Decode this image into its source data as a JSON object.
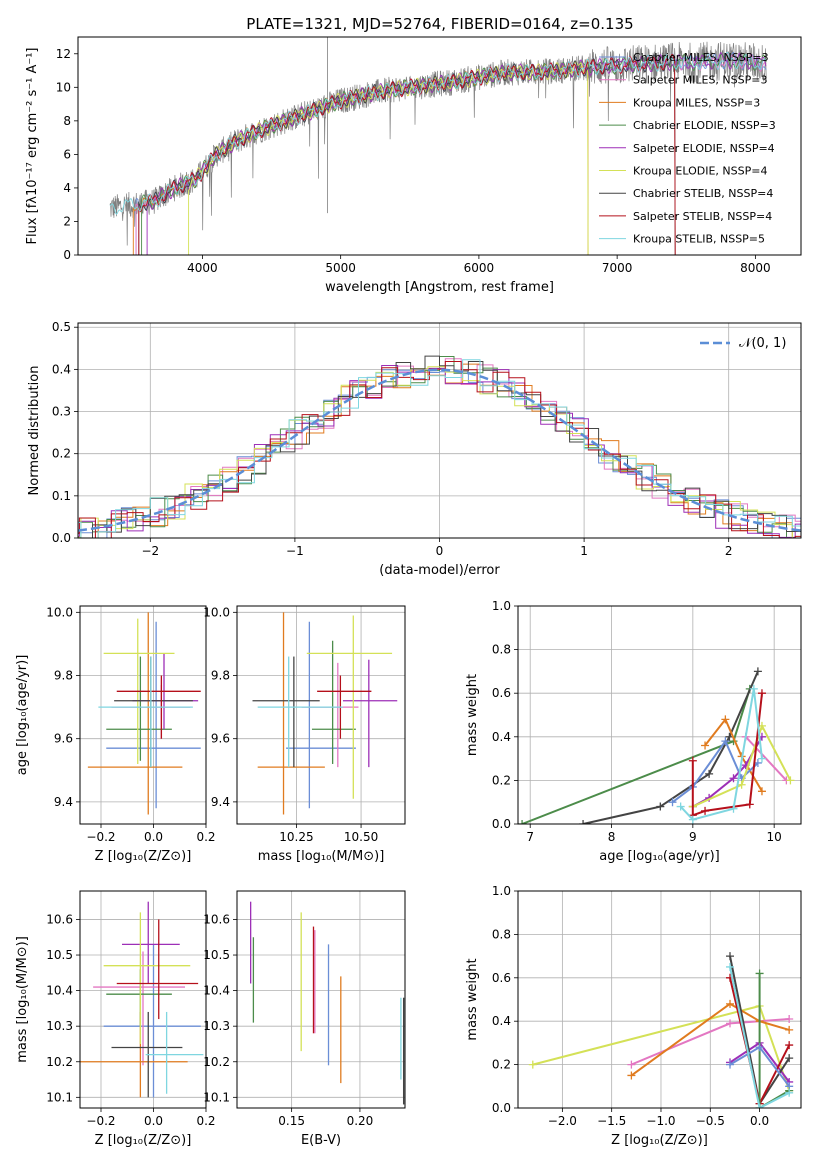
{
  "title": "PLATE=1321, MJD=52764, FIBERID=0164, z=0.135",
  "chart_data": [
    {
      "type": "line",
      "name": "spectrum",
      "xlabel": "wavelength [Angstrom, rest frame]",
      "ylabel": "Flux [fλ10⁻¹⁷ erg cm⁻² s⁻¹ A⁻¹]",
      "xlim": [
        3100,
        8330
      ],
      "ylim": [
        0,
        13
      ],
      "xticks": [
        "4000",
        "5000",
        "6000",
        "7000",
        "8000"
      ],
      "yticks": [
        "0",
        "2",
        "4",
        "6",
        "8",
        "10",
        "12"
      ],
      "legend": "upper-right",
      "data_trend": {
        "x": [
          3330,
          3500,
          3650,
          3800,
          3950,
          4100,
          4250,
          4400,
          4600,
          4800,
          5000,
          5200,
          5400,
          5600,
          5800,
          6000,
          6200,
          6400,
          6600,
          6800,
          7000,
          7200,
          7400,
          7600,
          7800,
          8000,
          8080
        ],
        "y": [
          2.8,
          3.0,
          3.2,
          4.0,
          4.5,
          6.0,
          6.8,
          7.4,
          8.0,
          8.6,
          9.2,
          9.6,
          9.9,
          10.1,
          10.3,
          10.6,
          10.9,
          10.9,
          11.0,
          11.2,
          11.3,
          11.4,
          11.5,
          11.5,
          11.6,
          11.5,
          11.4
        ]
      },
      "series": [
        {
          "name": "Chabrier MILES, N_SSP=3",
          "color": "#6b8ed6"
        },
        {
          "name": "Salpeter MILES, N_SSP=3",
          "color": "#e377c2"
        },
        {
          "name": "Kroupa MILES, N_SSP=3",
          "color": "#e07b1f"
        },
        {
          "name": "Chabrier ELODIE, N_SSP=3",
          "color": "#4c8c4a"
        },
        {
          "name": "Salpeter ELODIE, N_SSP=4",
          "color": "#9d2fb7"
        },
        {
          "name": "Kroupa ELODIE, N_SSP=4",
          "color": "#d4e157"
        },
        {
          "name": "Chabrier STELIB, N_SSP=4",
          "color": "#444444"
        },
        {
          "name": "Salpeter STELIB, N_SSP=4",
          "color": "#b5101b"
        },
        {
          "name": "Kroupa STELIB, N_SSP=5",
          "color": "#7fd6e0"
        }
      ]
    },
    {
      "type": "histogram",
      "name": "residuals",
      "xlabel": "(data-model)/error",
      "ylabel": "Normed distribution",
      "xlim": [
        -2.5,
        2.5
      ],
      "ylim": [
        0,
        0.51
      ],
      "xticks": [
        "−2",
        "−1",
        "0",
        "1",
        "2"
      ],
      "yticks": [
        "0.0",
        "0.1",
        "0.2",
        "0.3",
        "0.4",
        "0.5"
      ],
      "legend": "𝒩(0, 1)",
      "gaussian": {
        "mu": 0,
        "sigma": 1
      }
    },
    {
      "type": "errorbar",
      "name": "age-vs-Z",
      "xlabel": "Z [log₁₀(Z/Z⊙)]",
      "ylabel": "age  [log₁₀(age/yr)]",
      "xlim": [
        -0.28,
        0.2
      ],
      "ylim": [
        9.33,
        10.02
      ],
      "xticks": [
        "−0.2",
        "0.0",
        "0.2"
      ],
      "yticks": [
        "9.4",
        "9.6",
        "9.8",
        "10.0"
      ],
      "points": [
        {
          "x": 0.01,
          "y": 9.57,
          "ex": [
            0.19,
            0.17
          ],
          "ey": [
            0.19,
            0.4
          ],
          "color": "#6b8ed6"
        },
        {
          "x": 0.03,
          "y": 9.7,
          "ex": [
            0.19,
            0.11
          ],
          "ey": [
            0.1,
            0.07
          ],
          "color": "#e377c2"
        },
        {
          "x": -0.02,
          "y": 9.51,
          "ex": [
            0.23,
            0.13
          ],
          "ey": [
            0.15,
            0.49
          ],
          "color": "#e07b1f"
        },
        {
          "x": -0.05,
          "y": 9.63,
          "ex": [
            0.13,
            0.12
          ],
          "ey": [
            0.1,
            0.23
          ],
          "color": "#4c8c4a"
        },
        {
          "x": 0.04,
          "y": 9.72,
          "ex": [
            0.12,
            0.13
          ],
          "ey": [
            0.09,
            0.15
          ],
          "color": "#9d2fb7"
        },
        {
          "x": -0.06,
          "y": 9.87,
          "ex": [
            0.13,
            0.14
          ],
          "ey": [
            0.35,
            0.11
          ],
          "color": "#d4e157"
        },
        {
          "x": -0.01,
          "y": 9.72,
          "ex": [
            0.14,
            0.16
          ],
          "ey": [
            0.21,
            0.14
          ],
          "color": "#444444"
        },
        {
          "x": 0.03,
          "y": 9.75,
          "ex": [
            0.17,
            0.15
          ],
          "ey": [
            0.15,
            0.05
          ],
          "color": "#b5101b"
        },
        {
          "x": -0.01,
          "y": 9.7,
          "ex": [
            0.2,
            0.16
          ],
          "ey": [
            0.19,
            0.16
          ],
          "color": "#7fd6e0"
        }
      ]
    },
    {
      "type": "errorbar",
      "name": "age-vs-mass",
      "xlabel": "mass [log₁₀(M/M⊙)]",
      "ylabel": "",
      "xlim": [
        10.02,
        10.67
      ],
      "ylim": [
        9.33,
        10.02
      ],
      "xticks": [
        "10.25",
        "10.50"
      ],
      "yticks": [
        "9.4",
        "9.6",
        "9.8",
        "10.0"
      ],
      "points": [
        {
          "x": 10.3,
          "y": 9.57,
          "ex": [
            0.09,
            0.18
          ],
          "ey": [
            0.19,
            0.4
          ],
          "color": "#6b8ed6"
        },
        {
          "x": 10.41,
          "y": 9.7,
          "ex": [
            0.14,
            0.08
          ],
          "ey": [
            0.19,
            0.14
          ],
          "color": "#e377c2"
        },
        {
          "x": 10.2,
          "y": 9.51,
          "ex": [
            0.1,
            0.16
          ],
          "ey": [
            0.15,
            0.49
          ],
          "color": "#e07b1f"
        },
        {
          "x": 10.39,
          "y": 9.63,
          "ex": [
            0.08,
            0.09
          ],
          "ey": [
            0.11,
            0.28
          ],
          "color": "#4c8c4a"
        },
        {
          "x": 10.53,
          "y": 9.72,
          "ex": [
            0.1,
            0.11
          ],
          "ey": [
            0.21,
            0.13
          ],
          "color": "#9d2fb7"
        },
        {
          "x": 10.47,
          "y": 9.87,
          "ex": [
            0.18,
            0.15
          ],
          "ey": [
            0.46,
            0.12
          ],
          "color": "#d4e157"
        },
        {
          "x": 10.24,
          "y": 9.72,
          "ex": [
            0.16,
            0.1
          ],
          "ey": [
            0.21,
            0.14
          ],
          "color": "#444444"
        },
        {
          "x": 10.42,
          "y": 9.75,
          "ex": [
            0.09,
            0.12
          ],
          "ey": [
            0.15,
            0.05
          ],
          "color": "#b5101b"
        },
        {
          "x": 10.22,
          "y": 9.7,
          "ex": [
            0.12,
            0.21
          ],
          "ey": [
            0.19,
            0.16
          ],
          "color": "#7fd6e0"
        }
      ]
    },
    {
      "type": "line",
      "name": "mass-weight-vs-age",
      "xlabel": "age  [log₁₀(age/yr)]",
      "ylabel": "mass weight",
      "xlim": [
        6.85,
        10.33
      ],
      "ylim": [
        0,
        1
      ],
      "xticks": [
        "7",
        "8",
        "9",
        "10"
      ],
      "yticks": [
        "0.0",
        "0.2",
        "0.4",
        "0.6",
        "0.8",
        "1.0"
      ],
      "series": [
        {
          "color": "#4c8c4a",
          "x": [
            6.9,
            9.5,
            9.7
          ],
          "y": [
            0.0,
            0.38,
            0.62
          ]
        },
        {
          "color": "#444444",
          "x": [
            7.65,
            8.6,
            9.2,
            9.45,
            9.8
          ],
          "y": [
            0.0,
            0.08,
            0.23,
            0.4,
            0.7
          ]
        },
        {
          "color": "#e07b1f",
          "x": [
            9.15,
            9.4,
            9.6,
            9.85
          ],
          "y": [
            0.36,
            0.48,
            0.31,
            0.15
          ]
        },
        {
          "color": "#6b8ed6",
          "x": [
            8.75,
            9.0,
            9.4,
            9.6,
            9.8
          ],
          "y": [
            0.1,
            0.17,
            0.38,
            0.21,
            0.28
          ]
        },
        {
          "color": "#e377c2",
          "x": [
            9.65,
            10.15
          ],
          "y": [
            0.4,
            0.2
          ]
        },
        {
          "color": "#9d2fb7",
          "x": [
            9.0,
            9.2,
            9.5,
            9.65,
            9.85
          ],
          "y": [
            0.08,
            0.12,
            0.21,
            0.27,
            0.4
          ]
        },
        {
          "color": "#d4e157",
          "x": [
            9.0,
            9.6,
            9.85,
            10.2
          ],
          "y": [
            0.08,
            0.18,
            0.45,
            0.2
          ]
        },
        {
          "color": "#b5101b",
          "x": [
            9.0,
            9.0,
            9.15,
            9.7,
            9.85
          ],
          "y": [
            0.29,
            0.04,
            0.06,
            0.09,
            0.6
          ]
        },
        {
          "color": "#7fd6e0",
          "x": [
            8.85,
            9.0,
            9.5,
            9.75,
            9.85
          ],
          "y": [
            0.08,
            0.02,
            0.07,
            0.62,
            0.3
          ]
        }
      ]
    },
    {
      "type": "errorbar",
      "name": "mass-vs-Z",
      "xlabel": "Z [log₁₀(Z/Z⊙)]",
      "ylabel": "mass [log₁₀(M/M⊙)]",
      "xlim": [
        -0.28,
        0.2
      ],
      "ylim": [
        10.07,
        10.68
      ],
      "xticks": [
        "−0.2",
        "0.0",
        "0.2"
      ],
      "yticks": [
        "10.1",
        "10.2",
        "10.3",
        "10.4",
        "10.5",
        "10.6"
      ],
      "points": [
        {
          "x": 0.0,
          "y": 10.3,
          "ex": [
            0.19,
            0.18
          ],
          "ey": [
            0.2,
            0.23
          ],
          "color": "#6b8ed6"
        },
        {
          "x": -0.04,
          "y": 10.41,
          "ex": [
            0.19,
            0.16
          ],
          "ey": [
            0.22,
            0.1
          ],
          "color": "#e377c2"
        },
        {
          "x": -0.05,
          "y": 10.2,
          "ex": [
            0.23,
            0.18
          ],
          "ey": [
            0.1,
            0.14
          ],
          "color": "#e07b1f"
        },
        {
          "x": -0.05,
          "y": 10.39,
          "ex": [
            0.13,
            0.12
          ],
          "ey": [
            0.09,
            0.07
          ],
          "color": "#4c8c4a"
        },
        {
          "x": -0.02,
          "y": 10.53,
          "ex": [
            0.1,
            0.12
          ],
          "ey": [
            0.11,
            0.12
          ],
          "color": "#9d2fb7"
        },
        {
          "x": -0.05,
          "y": 10.47,
          "ex": [
            0.14,
            0.19
          ],
          "ey": [
            0.22,
            0.15
          ],
          "color": "#d4e157"
        },
        {
          "x": -0.02,
          "y": 10.24,
          "ex": [
            0.14,
            0.13
          ],
          "ey": [
            0.14,
            0.1
          ],
          "color": "#444444"
        },
        {
          "x": 0.02,
          "y": 10.42,
          "ex": [
            0.16,
            0.15
          ],
          "ey": [
            0.1,
            0.18
          ],
          "color": "#b5101b"
        },
        {
          "x": 0.05,
          "y": 10.22,
          "ex": [
            0.08,
            0.14
          ],
          "ey": [
            0.11,
            0.12
          ],
          "color": "#7fd6e0"
        }
      ]
    },
    {
      "type": "errorbar",
      "name": "mass-vs-EBV",
      "xlabel": "E(B-V)",
      "ylabel": "",
      "xlim": [
        0.11,
        0.233
      ],
      "ylim": [
        10.07,
        10.68
      ],
      "xticks": [
        "0.15",
        "0.20"
      ],
      "yticks": [
        "10.1",
        "10.2",
        "10.3",
        "10.4",
        "10.5",
        "10.6"
      ],
      "points": [
        {
          "x": 0.177,
          "y": 10.36,
          "ey": [
            0.17,
            0.17
          ],
          "color": "#6b8ed6"
        },
        {
          "x": 0.167,
          "y": 10.41,
          "ey": [
            0.13,
            0.16
          ],
          "color": "#e377c2"
        },
        {
          "x": 0.186,
          "y": 10.27,
          "ey": [
            0.13,
            0.17
          ],
          "color": "#e07b1f"
        },
        {
          "x": 0.122,
          "y": 10.43,
          "ey": [
            0.12,
            0.12
          ],
          "color": "#4c8c4a"
        },
        {
          "x": 0.12,
          "y": 10.53,
          "ey": [
            0.11,
            0.12
          ],
          "color": "#9d2fb7"
        },
        {
          "x": 0.157,
          "y": 10.42,
          "ey": [
            0.19,
            0.2
          ],
          "color": "#d4e157"
        },
        {
          "x": 0.232,
          "y": 10.25,
          "ey": [
            0.17,
            0.13
          ],
          "color": "#444444"
        },
        {
          "x": 0.166,
          "y": 10.43,
          "ey": [
            0.15,
            0.15
          ],
          "color": "#b5101b"
        },
        {
          "x": 0.23,
          "y": 10.25,
          "ey": [
            0.1,
            0.13
          ],
          "color": "#7fd6e0"
        }
      ]
    },
    {
      "type": "line",
      "name": "mass-weight-vs-Z",
      "xlabel": "Z [log₁₀(Z/Z⊙)]",
      "ylabel": "mass weight",
      "xlim": [
        -2.45,
        0.42
      ],
      "ylim": [
        0,
        1
      ],
      "xticks": [
        "−2.0",
        "−1.5",
        "−1.0",
        "−0.5",
        "0.0"
      ],
      "yticks": [
        "0.0",
        "0.2",
        "0.4",
        "0.6",
        "0.8",
        "1.0"
      ],
      "series": [
        {
          "color": "#d4e157",
          "x": [
            -2.3,
            0.0,
            0.3
          ],
          "y": [
            0.2,
            0.47,
            0.08
          ]
        },
        {
          "color": "#e377c2",
          "x": [
            -1.3,
            -0.3,
            0.3
          ],
          "y": [
            0.2,
            0.39,
            0.41
          ]
        },
        {
          "color": "#e07b1f",
          "x": [
            -1.3,
            -0.3,
            0.0,
            0.3
          ],
          "y": [
            0.15,
            0.48,
            0.4,
            0.36
          ]
        },
        {
          "color": "#9d2fb7",
          "x": [
            -0.3,
            0.0,
            0.3
          ],
          "y": [
            0.21,
            0.3,
            0.12
          ]
        },
        {
          "color": "#444444",
          "x": [
            -0.3,
            0.0,
            0.3
          ],
          "y": [
            0.7,
            0.02,
            0.23
          ]
        },
        {
          "color": "#b5101b",
          "x": [
            -0.3,
            0.0,
            0.3
          ],
          "y": [
            0.6,
            0.02,
            0.29
          ]
        },
        {
          "color": "#4c8c4a",
          "x": [
            0.0,
            0.0,
            0.3
          ],
          "y": [
            0.62,
            0.0,
            0.08
          ]
        },
        {
          "color": "#6b8ed6",
          "x": [
            -0.3,
            0.0,
            0.3
          ],
          "y": [
            0.2,
            0.28,
            0.1
          ]
        },
        {
          "color": "#7fd6e0",
          "x": [
            -0.3,
            0.0,
            0.3
          ],
          "y": [
            0.65,
            0.0,
            0.07
          ]
        }
      ]
    }
  ]
}
